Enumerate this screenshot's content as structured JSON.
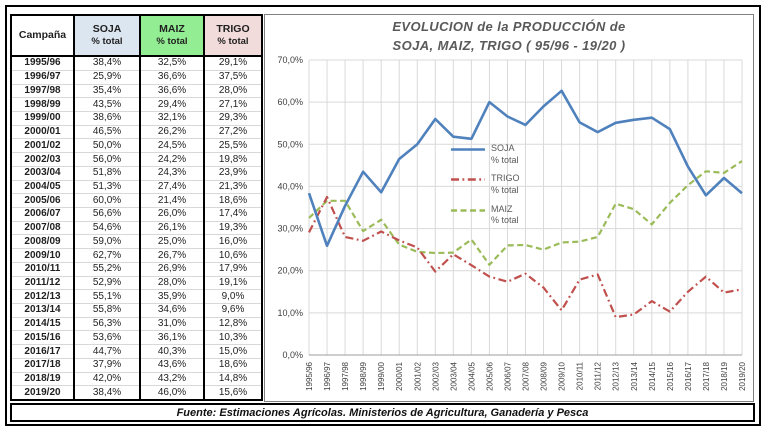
{
  "table": {
    "headers": [
      {
        "key": "campania",
        "label": "Campaña",
        "sub": "",
        "bg": "#ffffff"
      },
      {
        "key": "soja",
        "label": "SOJA",
        "sub": "% total",
        "bg": "#dce6f1"
      },
      {
        "key": "maiz",
        "label": "MAIZ",
        "sub": "% total",
        "bg": "#93ee93"
      },
      {
        "key": "trigo",
        "label": "TRIGO",
        "sub": "% total",
        "bg": "#f2dcdb"
      }
    ],
    "rows": [
      {
        "campaign": "1995/96",
        "soja": "38,4%",
        "maiz": "32,5%",
        "trigo": "29,1%"
      },
      {
        "campaign": "1996/97",
        "soja": "25,9%",
        "maiz": "36,6%",
        "trigo": "37,5%"
      },
      {
        "campaign": "1997/98",
        "soja": "35,4%",
        "maiz": "36,6%",
        "trigo": "28,0%"
      },
      {
        "campaign": "1998/99",
        "soja": "43,5%",
        "maiz": "29,4%",
        "trigo": "27,1%"
      },
      {
        "campaign": "1999/00",
        "soja": "38,6%",
        "maiz": "32,1%",
        "trigo": "29,3%"
      },
      {
        "campaign": "2000/01",
        "soja": "46,5%",
        "maiz": "26,2%",
        "trigo": "27,2%"
      },
      {
        "campaign": "2001/02",
        "soja": "50,0%",
        "maiz": "24,5%",
        "trigo": "25,5%"
      },
      {
        "campaign": "2002/03",
        "soja": "56,0%",
        "maiz": "24,2%",
        "trigo": "19,8%"
      },
      {
        "campaign": "2003/04",
        "soja": "51,8%",
        "maiz": "24,3%",
        "trigo": "23,9%"
      },
      {
        "campaign": "2004/05",
        "soja": "51,3%",
        "maiz": "27,4%",
        "trigo": "21,3%"
      },
      {
        "campaign": "2005/06",
        "soja": "60,0%",
        "maiz": "21,4%",
        "trigo": "18,6%"
      },
      {
        "campaign": "2006/07",
        "soja": "56,6%",
        "maiz": "26,0%",
        "trigo": "17,4%"
      },
      {
        "campaign": "2007/08",
        "soja": "54,6%",
        "maiz": "26,1%",
        "trigo": "19,3%"
      },
      {
        "campaign": "2008/09",
        "soja": "59,0%",
        "maiz": "25,0%",
        "trigo": "16,0%"
      },
      {
        "campaign": "2009/10",
        "soja": "62,7%",
        "maiz": "26,7%",
        "trigo": "10,6%"
      },
      {
        "campaign": "2010/11",
        "soja": "55,2%",
        "maiz": "26,9%",
        "trigo": "17,9%"
      },
      {
        "campaign": "2011/12",
        "soja": "52,9%",
        "maiz": "28,0%",
        "trigo": "19,1%"
      },
      {
        "campaign": "2012/13",
        "soja": "55,1%",
        "maiz": "35,9%",
        "trigo": "9,0%"
      },
      {
        "campaign": "2013/14",
        "soja": "55,8%",
        "maiz": "34,6%",
        "trigo": "9,6%"
      },
      {
        "campaign": "2014/15",
        "soja": "56,3%",
        "maiz": "31,0%",
        "trigo": "12,8%"
      },
      {
        "campaign": "2015/16",
        "soja": "53,6%",
        "maiz": "36,1%",
        "trigo": "10,3%"
      },
      {
        "campaign": "2016/17",
        "soja": "44,7%",
        "maiz": "40,3%",
        "trigo": "15,0%"
      },
      {
        "campaign": "2017/18",
        "soja": "37,9%",
        "maiz": "43,6%",
        "trigo": "18,6%"
      },
      {
        "campaign": "2018/19",
        "soja": "42,0%",
        "maiz": "43,2%",
        "trigo": "14,8%"
      },
      {
        "campaign": "2019/20",
        "soja": "38,4%",
        "maiz": "46,0%",
        "trigo": "15,6%"
      }
    ]
  },
  "chart": {
    "title_line1": "EVOLUCION de la PRODUCCIÓN de",
    "title_line2": "SOJA, MAIZ, TRIGO ( 95/96 -  19/20 )",
    "title_color": "#595959",
    "legend": [
      {
        "label": "SOJA",
        "sub": "% total",
        "dash": "solid",
        "color": "#4f81bd"
      },
      {
        "label": "TRIGO",
        "sub": "% total",
        "dash": "dashdot",
        "color": "#c0504d"
      },
      {
        "label": "MAIZ",
        "sub": "% total",
        "dash": "dashed",
        "color": "#9bbb59"
      }
    ]
  },
  "chart_data": {
    "type": "line",
    "title": "EVOLUCION de la PRODUCCIÓN de SOJA, MAIZ, TRIGO ( 95/96 - 19/20 )",
    "categories": [
      "1995/96",
      "1996/97",
      "1997/98",
      "1998/99",
      "1999/00",
      "2000/01",
      "2001/02",
      "2002/03",
      "2003/04",
      "2004/05",
      "2005/06",
      "2006/07",
      "2007/08",
      "2008/09",
      "2009/10",
      "2010/11",
      "2011/12",
      "2012/13",
      "2013/14",
      "2014/15",
      "2015/16",
      "2016/17",
      "2017/18",
      "2018/19",
      "2019/20"
    ],
    "series": [
      {
        "name": "SOJA % total",
        "color": "#4f81bd",
        "dash": "solid",
        "width": 2.6,
        "values": [
          38.4,
          25.9,
          35.4,
          43.5,
          38.6,
          46.5,
          50.0,
          56.0,
          51.8,
          51.3,
          60.0,
          56.6,
          54.6,
          59.0,
          62.7,
          55.2,
          52.9,
          55.1,
          55.8,
          56.3,
          53.6,
          44.7,
          37.9,
          42.0,
          38.4
        ]
      },
      {
        "name": "TRIGO % total",
        "color": "#c0504d",
        "dash": "dashdot",
        "width": 2.2,
        "values": [
          29.1,
          37.5,
          28.0,
          27.1,
          29.3,
          27.2,
          25.5,
          19.8,
          23.9,
          21.3,
          18.6,
          17.4,
          19.3,
          16.0,
          10.6,
          17.9,
          19.1,
          9.0,
          9.6,
          12.8,
          10.3,
          15.0,
          18.6,
          14.8,
          15.6
        ]
      },
      {
        "name": "MAIZ % total",
        "color": "#9bbb59",
        "dash": "dashed",
        "width": 2.2,
        "values": [
          32.5,
          36.6,
          36.6,
          29.4,
          32.1,
          26.2,
          24.5,
          24.2,
          24.3,
          27.4,
          21.4,
          26.0,
          26.1,
          25.0,
          26.7,
          26.9,
          28.0,
          35.9,
          34.6,
          31.0,
          36.1,
          40.3,
          43.6,
          43.2,
          46.0
        ]
      }
    ],
    "ylim": [
      0,
      70
    ],
    "ytick_step": 10,
    "ytick_labels": [
      "0,0%",
      "10,0%",
      "20,0%",
      "30,0%",
      "40,0%",
      "50,0%",
      "60,0%",
      "70,0%"
    ],
    "grid": true,
    "grid_color": "#d9d9d9",
    "axis_color": "#9d9d9d",
    "tick_label_color": "#404040",
    "legend_position": "inside-center"
  },
  "footer": {
    "text": "Fuente: Estimaciones Agrícolas. Ministerios de Agricultura, Ganadería y Pesca"
  }
}
